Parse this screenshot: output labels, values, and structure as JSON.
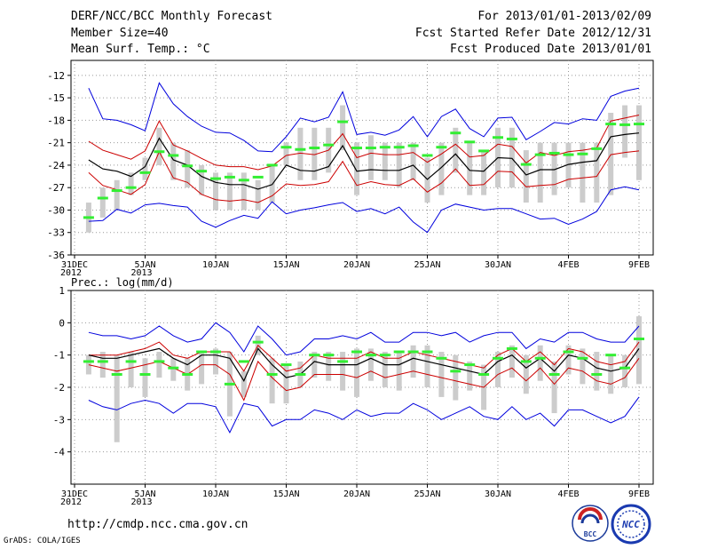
{
  "header": {
    "title": "DERF/NCC/BCC Monthly Forecast",
    "member_size": "Member Size=40",
    "variable": "Mean Surf. Temp.: °C",
    "period": "For 2013/01/01-2013/02/09",
    "started": "Fcst Started Refer Date 2012/12/31",
    "produced": "Fcst Produced Date 2013/01/01"
  },
  "footer": {
    "url": "http://cmdp.ncc.cma.gov.cn",
    "credit": "GrADS: COLA/IGES",
    "logo_bcc": "BCC",
    "logo_ncc": "NCC"
  },
  "colors": {
    "envelope": "#0000dd",
    "spread": "#cc0000",
    "mean": "#000000",
    "median": "#33ee33",
    "box": "#cccccc",
    "grid": "#999999"
  },
  "chart_data": [
    {
      "type": "line",
      "title": "Mean Surf. Temp.: °C",
      "x_labels": [
        [
          "31DEC",
          "2012"
        ],
        [
          "5JAN",
          "2013"
        ],
        [
          "10JAN"
        ],
        [
          "15JAN"
        ],
        [
          "20JAN"
        ],
        [
          "25JAN"
        ],
        [
          "30JAN"
        ],
        [
          "4FEB"
        ],
        [
          "9FEB"
        ]
      ],
      "x_label_days": [
        0,
        5,
        10,
        15,
        20,
        25,
        30,
        35,
        40
      ],
      "xlim": [
        0,
        40
      ],
      "ylim": [
        -36,
        -10
      ],
      "yticks": [
        -12,
        -15,
        -18,
        -21,
        -24,
        -27,
        -30,
        -33,
        -36
      ],
      "days": [
        1,
        2,
        3,
        4,
        5,
        6,
        7,
        8,
        9,
        10,
        11,
        12,
        13,
        14,
        15,
        16,
        17,
        18,
        19,
        20,
        21,
        22,
        23,
        24,
        25,
        26,
        27,
        28,
        29,
        30,
        31,
        32,
        33,
        34,
        35,
        36,
        37,
        38,
        39,
        40
      ],
      "series": [
        {
          "name": "max",
          "color": "#0000dd",
          "values": [
            -13.7,
            -17.8,
            -18.0,
            -18.6,
            -19.4,
            -13.0,
            -15.8,
            -17.5,
            -18.8,
            -19.6,
            -19.7,
            -20.7,
            -22.1,
            -22.2,
            -20.2,
            -17.7,
            -18.2,
            -17.6,
            -14.2,
            -19.9,
            -19.6,
            -20.0,
            -19.3,
            -17.5,
            -20.2,
            -17.5,
            -16.5,
            -19.1,
            -20.2,
            -17.7,
            -17.6,
            -20.6,
            -19.5,
            -18.3,
            -18.5,
            -17.8,
            -18.0,
            -14.8,
            -14.1,
            -13.7
          ]
        },
        {
          "name": "upper",
          "color": "#cc0000",
          "values": [
            -20.8,
            -22.0,
            -22.6,
            -23.2,
            -22.1,
            -18.1,
            -21.3,
            -22.1,
            -23.1,
            -24.0,
            -24.2,
            -24.2,
            -24.6,
            -24.1,
            -22.7,
            -22.4,
            -22.6,
            -22.0,
            -19.8,
            -23.0,
            -22.4,
            -22.6,
            -22.6,
            -22.3,
            -23.6,
            -22.5,
            -21.2,
            -22.9,
            -22.7,
            -21.2,
            -21.5,
            -23.7,
            -22.3,
            -22.7,
            -22.2,
            -22.0,
            -21.7,
            -18.1,
            -17.7,
            -17.3
          ]
        },
        {
          "name": "mean",
          "color": "#000000",
          "values": [
            -23.3,
            -24.5,
            -24.8,
            -25.5,
            -24.2,
            -20.4,
            -23.3,
            -24.0,
            -25.5,
            -26.3,
            -26.6,
            -26.6,
            -27.2,
            -26.6,
            -24.0,
            -24.7,
            -24.8,
            -24.2,
            -21.4,
            -24.8,
            -24.6,
            -24.7,
            -24.7,
            -24.0,
            -25.9,
            -24.3,
            -22.5,
            -24.7,
            -24.8,
            -23.0,
            -23.1,
            -25.3,
            -24.6,
            -24.6,
            -23.9,
            -23.6,
            -23.4,
            -20.2,
            -19.9,
            -19.7
          ]
        },
        {
          "name": "lower",
          "color": "#cc0000",
          "values": [
            -25.0,
            -26.7,
            -27.3,
            -27.9,
            -26.6,
            -22.2,
            -25.7,
            -26.3,
            -27.9,
            -28.6,
            -28.8,
            -28.6,
            -29.0,
            -28.1,
            -26.5,
            -26.7,
            -26.6,
            -26.2,
            -23.5,
            -26.7,
            -26.2,
            -26.6,
            -26.7,
            -25.8,
            -27.6,
            -26.4,
            -24.5,
            -26.7,
            -26.6,
            -24.8,
            -24.9,
            -26.9,
            -26.7,
            -26.6,
            -25.9,
            -25.7,
            -25.5,
            -22.6,
            -22.3,
            -22.1
          ]
        },
        {
          "name": "min",
          "color": "#0000dd",
          "values": [
            -31.5,
            -31.4,
            -29.9,
            -30.4,
            -29.3,
            -29.1,
            -29.4,
            -29.6,
            -31.5,
            -32.3,
            -31.4,
            -30.7,
            -31.1,
            -28.9,
            -30.5,
            -30.0,
            -29.7,
            -29.3,
            -29.0,
            -30.2,
            -29.8,
            -30.5,
            -29.6,
            -31.6,
            -33.0,
            -30.0,
            -29.2,
            -29.6,
            -30.0,
            -29.8,
            -29.8,
            -30.5,
            -31.2,
            -31.1,
            -31.9,
            -31.2,
            -30.2,
            -27.3,
            -26.9,
            -27.3
          ]
        }
      ],
      "box_low": [
        -33,
        -31,
        -30,
        -28,
        -26,
        -24,
        -26,
        -27,
        -28,
        -30,
        -30,
        -30,
        -30,
        -29,
        -24,
        -26,
        -26,
        -25,
        -22,
        -28,
        -26,
        -26,
        -27,
        -26,
        -29,
        -28,
        -25,
        -28,
        -28,
        -27,
        -27,
        -29,
        -29,
        -28,
        -27,
        -29,
        -29,
        -28,
        -23,
        -26
      ],
      "box_high": [
        -29,
        -27,
        -26,
        -25,
        -23,
        -19,
        -21,
        -22,
        -24,
        -25,
        -25,
        -25,
        -26,
        -24,
        -21,
        -19,
        -19,
        -19,
        -16,
        -21,
        -20,
        -21,
        -21,
        -21,
        -23,
        -21,
        -19,
        -21,
        -22,
        -19,
        -19,
        -22,
        -21,
        -21,
        -21,
        -21,
        -21,
        -17,
        -16,
        -16
      ],
      "median": [
        -31.0,
        -28.4,
        -27.4,
        -27.0,
        -25.0,
        -22.2,
        -22.7,
        -24.1,
        -24.8,
        -25.8,
        -25.6,
        -26.0,
        -25.6,
        -24.0,
        -21.6,
        -21.9,
        -21.7,
        -21.3,
        -18.2,
        -21.7,
        -21.7,
        -21.6,
        -21.6,
        -21.4,
        -22.7,
        -21.6,
        -19.7,
        -20.9,
        -22.1,
        -20.3,
        -20.5,
        -23.9,
        -22.6,
        -22.4,
        -22.6,
        -22.5,
        -21.8,
        -18.5,
        -18.6,
        -18.5
      ]
    },
    {
      "type": "line",
      "title": "Prec.: log(mm/d)",
      "x_labels": [
        [
          "31DEC",
          "2012"
        ],
        [
          "5JAN",
          "2013"
        ],
        [
          "10JAN"
        ],
        [
          "15JAN"
        ],
        [
          "20JAN"
        ],
        [
          "25JAN"
        ],
        [
          "30JAN"
        ],
        [
          "4FEB"
        ],
        [
          "9FEB"
        ]
      ],
      "x_label_days": [
        0,
        5,
        10,
        15,
        20,
        25,
        30,
        35,
        40
      ],
      "xlim": [
        0,
        40
      ],
      "ylim": [
        -5,
        1
      ],
      "yticks": [
        1,
        0,
        -1,
        -2,
        -3,
        -4
      ],
      "days": [
        1,
        2,
        3,
        4,
        5,
        6,
        7,
        8,
        9,
        10,
        11,
        12,
        13,
        14,
        15,
        16,
        17,
        18,
        19,
        20,
        21,
        22,
        23,
        24,
        25,
        26,
        27,
        28,
        29,
        30,
        31,
        32,
        33,
        34,
        35,
        36,
        37,
        38,
        39,
        40
      ],
      "series": [
        {
          "name": "max",
          "color": "#0000dd",
          "values": [
            -0.3,
            -0.4,
            -0.4,
            -0.5,
            -0.4,
            -0.1,
            -0.4,
            -0.6,
            -0.5,
            0.0,
            -0.3,
            -0.9,
            -0.1,
            -0.5,
            -1.0,
            -0.9,
            -0.5,
            -0.5,
            -0.4,
            -0.5,
            -0.3,
            -0.6,
            -0.6,
            -0.3,
            -0.3,
            -0.4,
            -0.3,
            -0.6,
            -0.4,
            -0.3,
            -0.3,
            -0.8,
            -0.5,
            -0.6,
            -0.3,
            -0.3,
            -0.5,
            -0.6,
            -0.6,
            -0.1
          ]
        },
        {
          "name": "upper",
          "color": "#cc0000",
          "values": [
            -1.0,
            -1.0,
            -1.0,
            -0.9,
            -0.8,
            -0.6,
            -1.0,
            -1.1,
            -0.9,
            -0.9,
            -0.9,
            -1.5,
            -0.7,
            -1.1,
            -1.5,
            -1.4,
            -1.0,
            -1.1,
            -1.1,
            -1.1,
            -0.9,
            -1.1,
            -1.1,
            -0.9,
            -1.0,
            -1.1,
            -1.2,
            -1.3,
            -1.4,
            -1.0,
            -0.8,
            -1.2,
            -0.9,
            -1.3,
            -0.8,
            -0.9,
            -1.2,
            -1.3,
            -1.2,
            -0.6
          ]
        },
        {
          "name": "mean",
          "color": "#000000",
          "values": [
            -1.0,
            -1.1,
            -1.1,
            -1.0,
            -0.9,
            -0.8,
            -1.1,
            -1.3,
            -1.0,
            -1.0,
            -1.1,
            -1.8,
            -0.8,
            -1.3,
            -1.7,
            -1.6,
            -1.2,
            -1.3,
            -1.3,
            -1.3,
            -1.1,
            -1.3,
            -1.3,
            -1.1,
            -1.2,
            -1.3,
            -1.4,
            -1.5,
            -1.6,
            -1.2,
            -1.0,
            -1.4,
            -1.1,
            -1.5,
            -1.0,
            -1.1,
            -1.4,
            -1.5,
            -1.4,
            -0.8
          ]
        },
        {
          "name": "lower",
          "color": "#cc0000",
          "values": [
            -1.3,
            -1.4,
            -1.5,
            -1.4,
            -1.3,
            -1.2,
            -1.4,
            -1.6,
            -1.3,
            -1.3,
            -1.6,
            -2.4,
            -1.2,
            -1.7,
            -2.1,
            -2.0,
            -1.6,
            -1.6,
            -1.6,
            -1.7,
            -1.5,
            -1.7,
            -1.6,
            -1.5,
            -1.6,
            -1.7,
            -1.8,
            -1.9,
            -2.0,
            -1.6,
            -1.4,
            -1.8,
            -1.4,
            -1.9,
            -1.4,
            -1.5,
            -1.8,
            -1.9,
            -1.7,
            -1.1
          ]
        },
        {
          "name": "min",
          "color": "#0000dd",
          "values": [
            -2.4,
            -2.6,
            -2.7,
            -2.5,
            -2.4,
            -2.5,
            -2.8,
            -2.5,
            -2.5,
            -2.6,
            -3.4,
            -2.5,
            -2.6,
            -3.2,
            -3.0,
            -3.0,
            -2.7,
            -2.8,
            -3.0,
            -2.7,
            -2.9,
            -2.8,
            -2.8,
            -2.5,
            -2.7,
            -3.0,
            -2.8,
            -2.6,
            -2.9,
            -3.0,
            -2.6,
            -3.0,
            -2.8,
            -3.2,
            -2.7,
            -2.7,
            -2.9,
            -3.1,
            -2.9,
            -2.3
          ]
        },
        {
          "name": "box_dummy",
          "color": "none",
          "values": []
        }
      ],
      "box_low": [
        -1.6,
        -1.7,
        -3.7,
        -2.0,
        -2.3,
        -1.7,
        -1.8,
        -2.1,
        -1.9,
        -1.6,
        -2.9,
        -2.3,
        -1.0,
        -2.5,
        -2.5,
        -2.0,
        -1.7,
        -1.8,
        -2.1,
        -2.3,
        -1.8,
        -2.0,
        -2.1,
        -1.7,
        -2.0,
        -2.3,
        -2.4,
        -2.1,
        -2.7,
        -2.0,
        -1.7,
        -2.2,
        -1.8,
        -2.8,
        -1.6,
        -1.9,
        -2.1,
        -2.2,
        -2.0,
        -1.9
      ],
      "box_high": [
        -1.0,
        -0.9,
        -1.0,
        -0.9,
        -1.1,
        -0.9,
        -1.1,
        -1.1,
        -0.9,
        -0.8,
        -0.9,
        -1.5,
        -0.4,
        -1.1,
        -1.3,
        -1.2,
        -0.9,
        -0.9,
        -0.9,
        -0.8,
        -0.8,
        -0.9,
        -0.9,
        -0.7,
        -0.7,
        -0.9,
        -1.0,
        -1.2,
        -1.3,
        -0.9,
        -0.7,
        -1.0,
        -0.7,
        -1.2,
        -0.7,
        -0.8,
        -0.9,
        -1.0,
        -1.0,
        0.2
      ],
      "median": [
        -1.2,
        -1.2,
        -1.6,
        -1.2,
        -1.6,
        -1.2,
        -1.4,
        -1.6,
        -0.9,
        -0.9,
        -1.9,
        -1.2,
        -0.6,
        -1.6,
        -1.3,
        -1.6,
        -1.0,
        -1.0,
        -1.2,
        -0.9,
        -1.0,
        -1.0,
        -0.9,
        -0.9,
        -0.9,
        -1.1,
        -1.5,
        -1.3,
        -1.6,
        -1.1,
        -0.8,
        -1.2,
        -1.1,
        -1.6,
        -0.9,
        -1.1,
        -1.6,
        -1.0,
        -1.4,
        -0.5
      ]
    }
  ]
}
